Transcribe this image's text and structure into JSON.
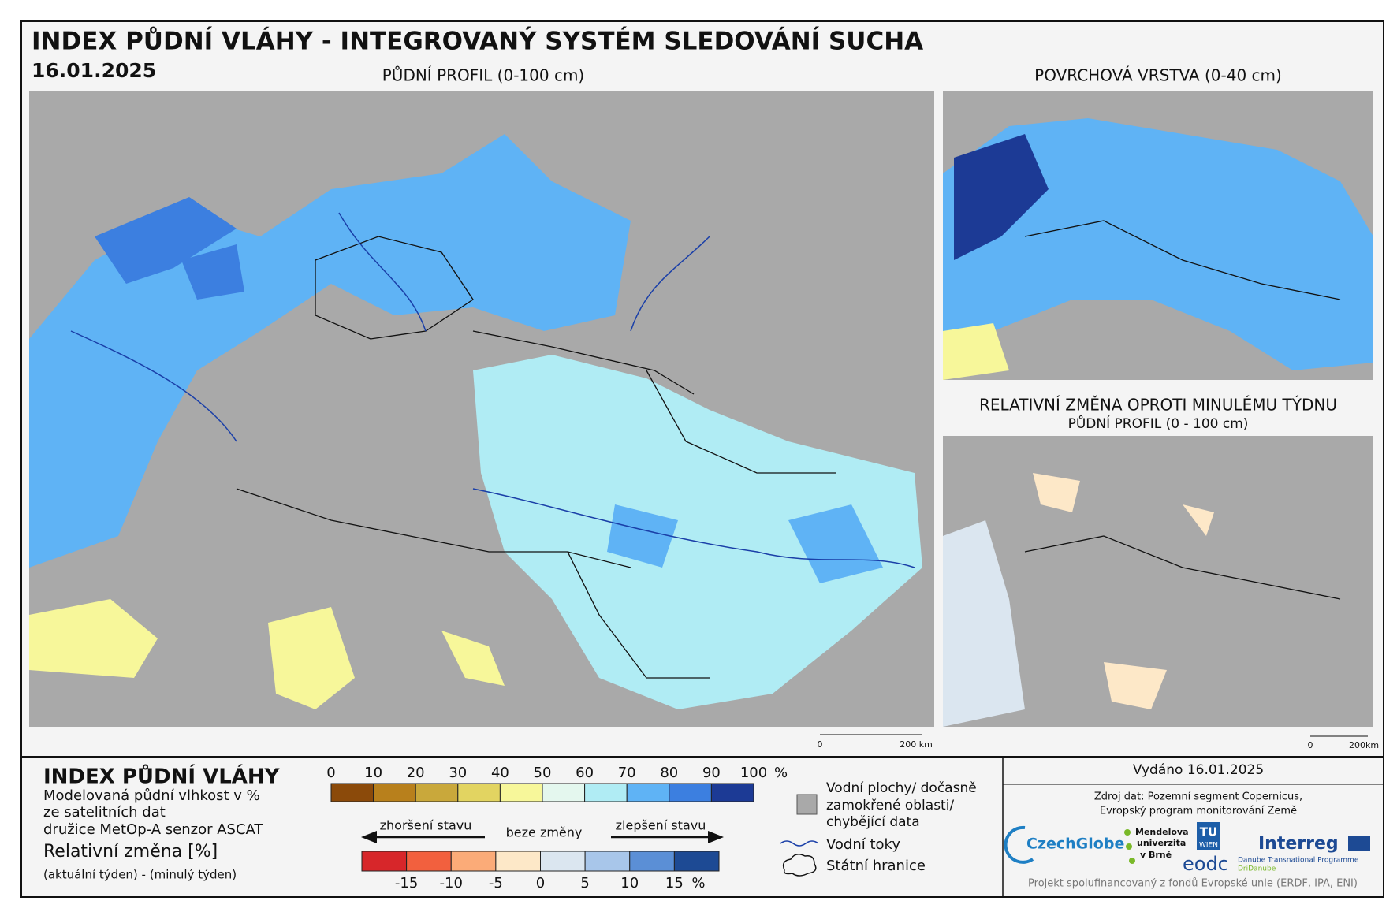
{
  "header": {
    "title": "INDEX PŮDNÍ VLÁHY - INTEGROVANÝ SYSTÉM SLEDOVÁNÍ SUCHA",
    "date": "16.01.2025"
  },
  "maps": [
    {
      "title": "PŮDNÍ PROFIL (0-100 cm)",
      "scale_start": "0",
      "scale_end": "200 km"
    },
    {
      "title": "POVRCHOVÁ VRSTVA (0-40 cm)",
      "scale_start": "0",
      "scale_end": "200km"
    },
    {
      "title": "RELATIVNÍ ZMĚNA OPROTI MINULÉMU TÝDNU",
      "subtitle": "PŮDNÍ PROFIL (0 - 100 cm)"
    }
  ],
  "legend": {
    "title": "INDEX PŮDNÍ VLÁHY",
    "description": [
      "Modelovaná půdní vlhkost v %",
      "ze satelitních dat",
      "družice MetOp-A senzor ASCAT"
    ],
    "change_title": "Relativní změna [%]",
    "change_formula": "(aktuální týden) - (minulý týden)",
    "index_ticks": [
      0,
      10,
      20,
      30,
      40,
      50,
      60,
      70,
      80,
      90,
      100
    ],
    "index_unit": "%",
    "index_colors": [
      "#8b4a0a",
      "#b8801c",
      "#c9a83b",
      "#e2d461",
      "#f7f79a",
      "#e4f7ee",
      "#b0ecf4",
      "#5fb3f5",
      "#3c7fe0",
      "#1c3a95"
    ],
    "worse": "zhoršení stavu",
    "no_change": "beze změny",
    "better": "zlepšení stavu",
    "change_ticks": [
      -15,
      -10,
      -5,
      0,
      5,
      10,
      15
    ],
    "change_unit": "%",
    "change_colors": [
      "#d7262a",
      "#f2603e",
      "#fbab78",
      "#fde8c8",
      "#dbe6f0",
      "#a8c6ea",
      "#5b8fd6",
      "#1d4a94"
    ],
    "symbols": {
      "water_areas": [
        "Vodní plochy/ dočasně",
        "zamokřené oblasti/",
        "chybějící data"
      ],
      "rivers": "Vodní toky",
      "borders": "Státní hranice"
    }
  },
  "footer": {
    "issued": "Vydáno 16.01.2025",
    "source": [
      "Zdroj dat: Pozemní segment Copernicus,",
      "Evropský program monitorování Země"
    ],
    "logos": {
      "czechglobe": "CzechGlobe",
      "mendelu": [
        "Mendelova",
        "univerzita",
        "v Brně"
      ],
      "tu": [
        "TU",
        "WIEN"
      ],
      "eodc": "eodc",
      "interreg": "Interreg",
      "interreg_sub": [
        "Danube Transnational Programme",
        "DriDanube"
      ]
    },
    "funding": "Projekt spolufinancovaný z fondů Evropské unie (ERDF, IPA, ENI)"
  }
}
